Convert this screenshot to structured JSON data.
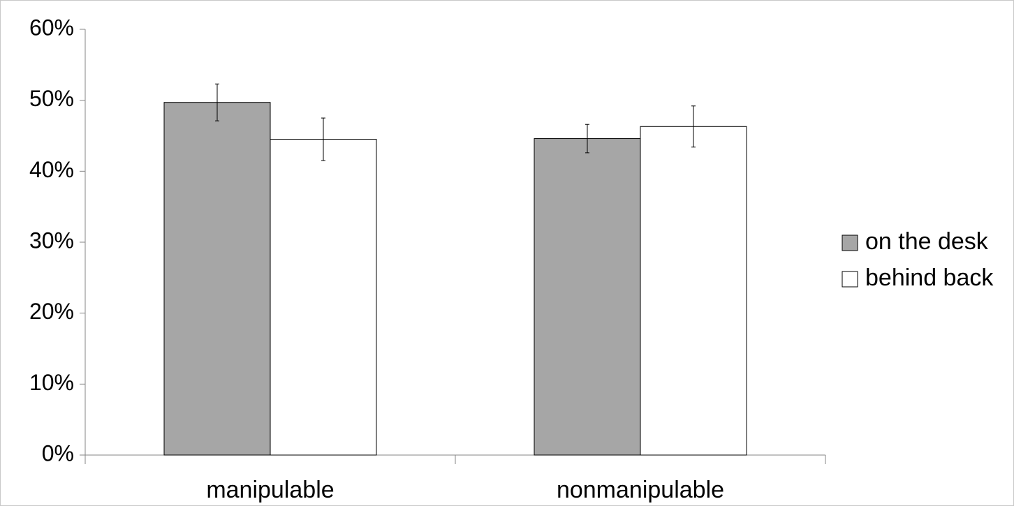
{
  "chart_data": {
    "type": "bar",
    "categories": [
      "manipulable",
      "nonmanipulable"
    ],
    "series": [
      {
        "name": "on the desk",
        "values": [
          49.7,
          44.6
        ],
        "errors": [
          2.6,
          2.0
        ],
        "color": "#a6a6a6"
      },
      {
        "name": "behind back",
        "values": [
          44.5,
          46.3
        ],
        "errors": [
          3.0,
          2.9
        ],
        "color": "#ffffff"
      }
    ],
    "ylim": [
      0,
      60
    ],
    "yticks": [
      0,
      10,
      20,
      30,
      40,
      50,
      60
    ],
    "ytick_labels": [
      "0%",
      "10%",
      "20%",
      "30%",
      "40%",
      "50%",
      "60%"
    ],
    "title": "",
    "xlabel": "",
    "ylabel": "",
    "grid": false,
    "legend_position": "right",
    "error_bars": true
  }
}
